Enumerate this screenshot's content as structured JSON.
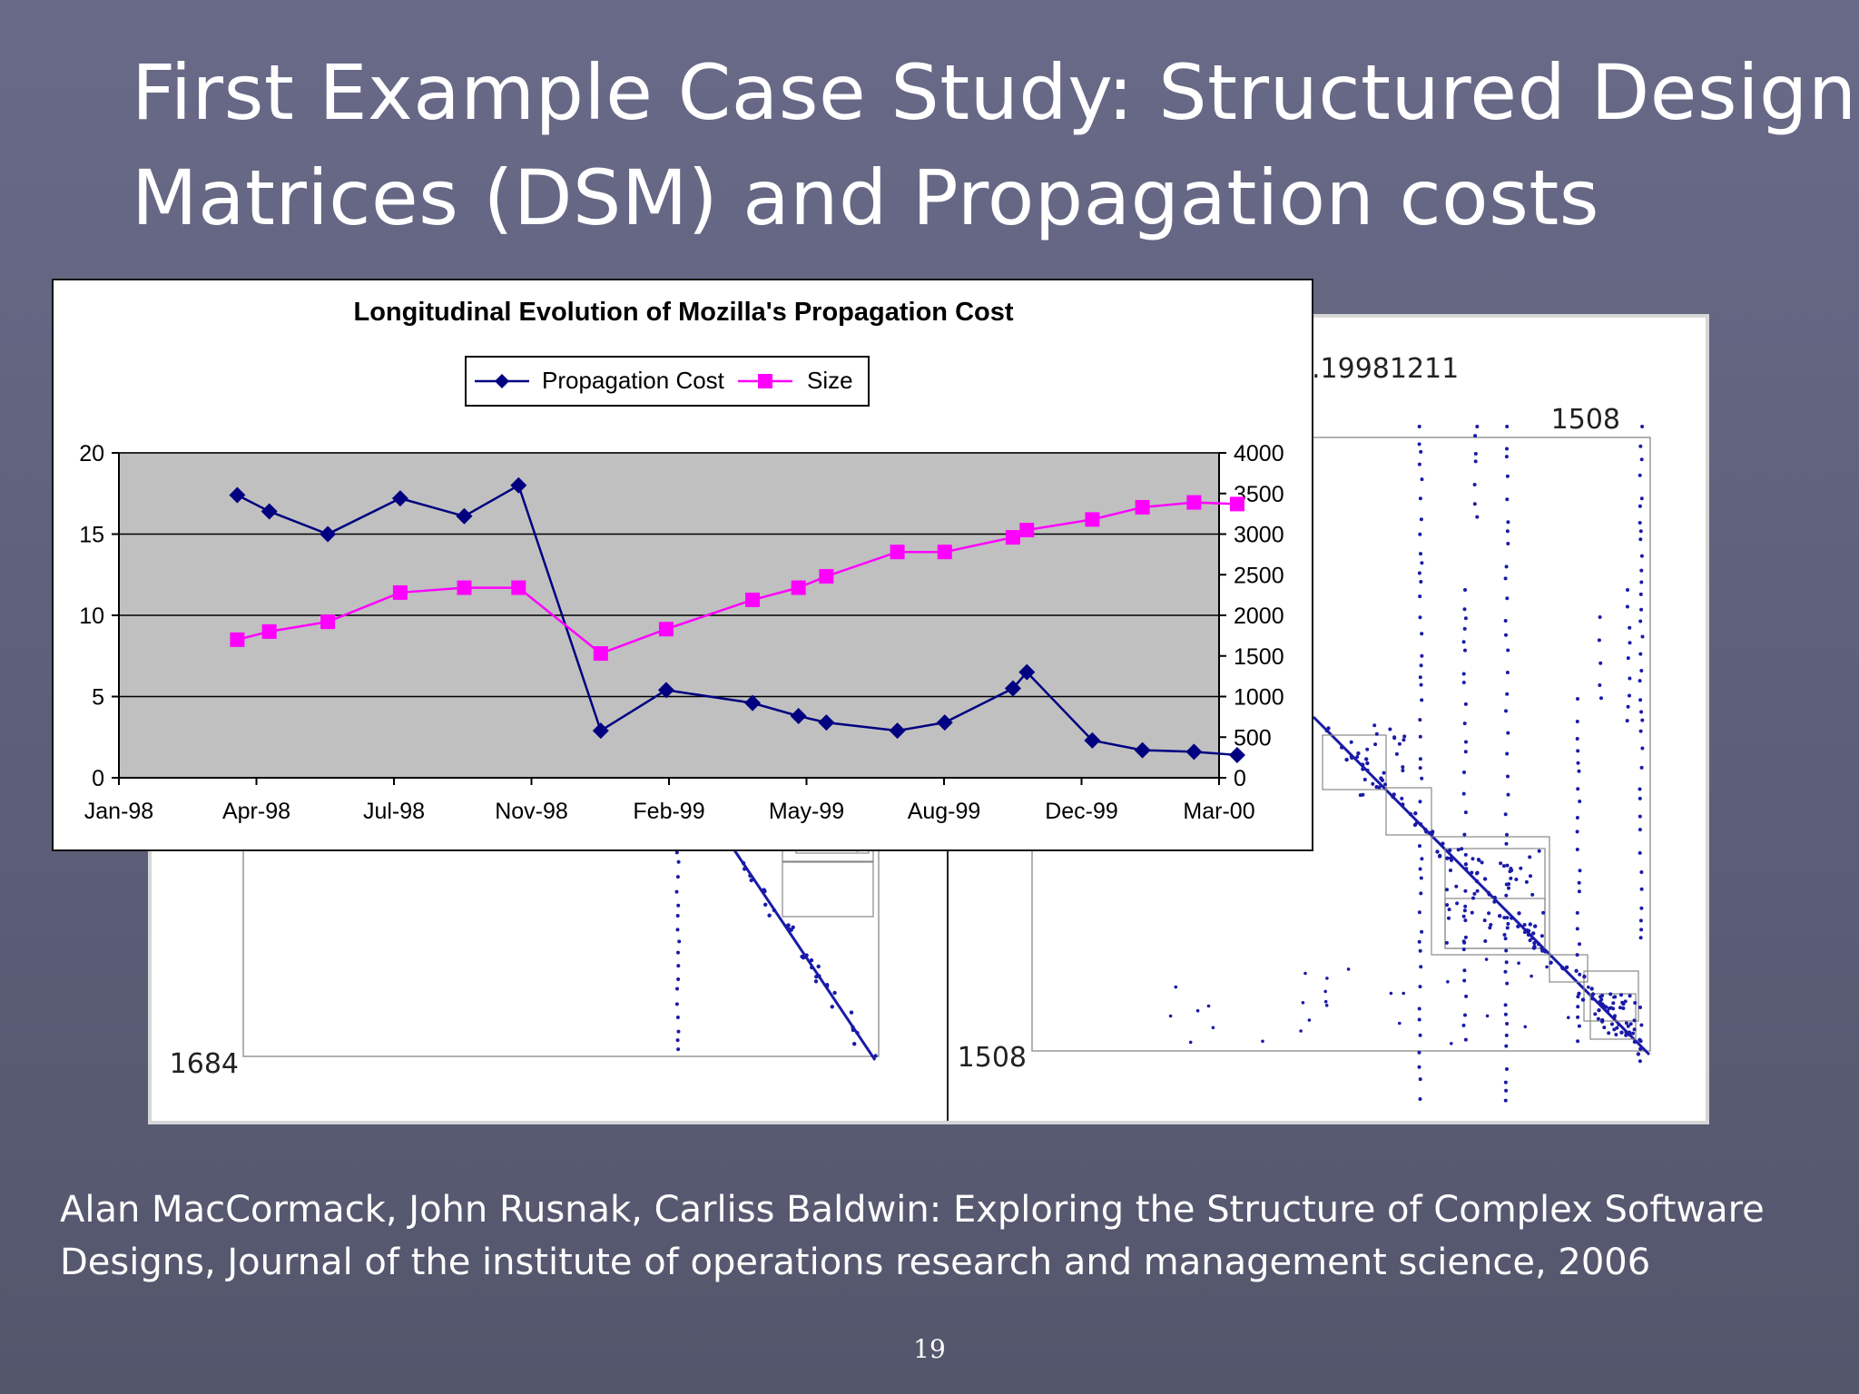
{
  "slide": {
    "title_line1": "First Example Case Study: Structured Design",
    "title_line2": "Matrices (DSM) and Propagation costs",
    "citation_line1": "Alan MacCormack, John Rusnak, Carliss Baldwin: Exploring the Structure of Complex Software",
    "citation_line2": "Designs, Journal of the institute of operations research and management science, 2006",
    "page_number": "19"
  },
  "dsm_figure": {
    "left_matrix_size_label": "1684",
    "right_matrix_size_label_top": "1508",
    "right_matrix_size_label_bottom": "1508",
    "right_matrix_caption_fragment": ".19981211",
    "dot_color": "#1a1aa8"
  },
  "chart_data": {
    "type": "line",
    "title": "Longitudinal Evolution of Mozilla's Propagation Cost",
    "x_tick_labels": [
      "Jan-98",
      "Apr-98",
      "Jul-98",
      "Nov-98",
      "Feb-99",
      "May-99",
      "Aug-99",
      "Dec-99",
      "Mar-00"
    ],
    "xlim": [
      "1998-01-01",
      "2000-03-01"
    ],
    "y_left": {
      "ylim": [
        0,
        20
      ],
      "ticks": [
        0,
        5,
        10,
        15,
        20
      ]
    },
    "y_right": {
      "ylim": [
        0,
        4000
      ],
      "ticks": [
        0,
        500,
        1000,
        1500,
        2000,
        2500,
        3000,
        3500,
        4000
      ]
    },
    "legend": {
      "placement": "top-center"
    },
    "grid": "horizontal",
    "plot_background": "#c0c0c0",
    "series": [
      {
        "name": "Propagation Cost",
        "axis": "left",
        "color": "#000080",
        "marker": "diamond",
        "points": [
          {
            "x": "1998-03-27",
            "y": 17.4
          },
          {
            "x": "1998-04-19",
            "y": 16.4
          },
          {
            "x": "1998-05-31",
            "y": 15.0
          },
          {
            "x": "1998-07-22",
            "y": 17.2
          },
          {
            "x": "1998-09-06",
            "y": 16.1
          },
          {
            "x": "1998-10-15",
            "y": 18.0
          },
          {
            "x": "1998-12-13",
            "y": 2.9
          },
          {
            "x": "1999-01-29",
            "y": 5.4
          },
          {
            "x": "1999-04-01",
            "y": 4.6
          },
          {
            "x": "1999-05-04",
            "y": 3.8
          },
          {
            "x": "1999-05-24",
            "y": 3.4
          },
          {
            "x": "1999-07-14",
            "y": 2.9
          },
          {
            "x": "1999-08-17",
            "y": 3.4
          },
          {
            "x": "1999-10-05",
            "y": 5.5
          },
          {
            "x": "1999-10-15",
            "y": 6.5
          },
          {
            "x": "1999-12-01",
            "y": 2.3
          },
          {
            "x": "2000-01-06",
            "y": 1.7
          },
          {
            "x": "2000-02-12",
            "y": 1.6
          },
          {
            "x": "2000-03-14",
            "y": 1.4
          }
        ]
      },
      {
        "name": "Size",
        "axis": "right",
        "color": "#ff00ff",
        "marker": "square",
        "points": [
          {
            "x": "1998-03-27",
            "y": 1700
          },
          {
            "x": "1998-04-19",
            "y": 1800
          },
          {
            "x": "1998-05-31",
            "y": 1920
          },
          {
            "x": "1998-07-22",
            "y": 2280
          },
          {
            "x": "1998-09-06",
            "y": 2340
          },
          {
            "x": "1998-10-15",
            "y": 2340
          },
          {
            "x": "1998-12-13",
            "y": 1530
          },
          {
            "x": "1999-01-29",
            "y": 1830
          },
          {
            "x": "1999-04-01",
            "y": 2190
          },
          {
            "x": "1999-05-04",
            "y": 2340
          },
          {
            "x": "1999-05-24",
            "y": 2480
          },
          {
            "x": "1999-07-14",
            "y": 2780
          },
          {
            "x": "1999-08-17",
            "y": 2780
          },
          {
            "x": "1999-10-05",
            "y": 2960
          },
          {
            "x": "1999-10-15",
            "y": 3050
          },
          {
            "x": "1999-12-01",
            "y": 3180
          },
          {
            "x": "2000-01-06",
            "y": 3330
          },
          {
            "x": "2000-02-12",
            "y": 3390
          },
          {
            "x": "2000-03-14",
            "y": 3370
          }
        ]
      }
    ]
  }
}
